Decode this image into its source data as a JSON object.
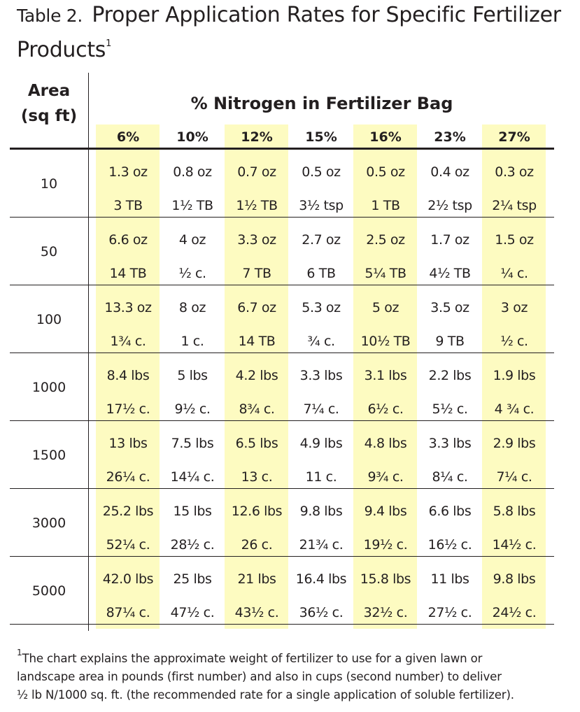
{
  "title": {
    "label": "Table 2.",
    "text": "Proper Application Rates for Specific Fertilizer Products",
    "note_mark": "1"
  },
  "table": {
    "stub_header": [
      "Area",
      "(sq ft)"
    ],
    "span_header": "% Nitrogen in Fertilizer Bag",
    "columns": [
      "6%",
      "10%",
      "12%",
      "15%",
      "16%",
      "23%",
      "27%"
    ],
    "highlight_color": "#fdfbc1",
    "rows": [
      {
        "area": "10",
        "weights": [
          "1.3 oz",
          "0.8 oz",
          "0.7 oz",
          "0.5 oz",
          "0.5 oz",
          "0.4 oz",
          "0.3 oz"
        ],
        "cups": [
          "3 TB",
          "1½ TB",
          "1½ TB",
          "3½ tsp",
          "1 TB",
          "2½ tsp",
          "2¼ tsp"
        ]
      },
      {
        "area": "50",
        "weights": [
          "6.6 oz",
          "4 oz",
          "3.3 oz",
          "2.7 oz",
          "2.5 oz",
          "1.7 oz",
          "1.5 oz"
        ],
        "cups": [
          "14 TB",
          "½ c.",
          "7 TB",
          "6 TB",
          "5¼ TB",
          "4½ TB",
          "¼ c."
        ]
      },
      {
        "area": "100",
        "weights": [
          "13.3 oz",
          "8 oz",
          "6.7 oz",
          "5.3 oz",
          "5 oz",
          "3.5 oz",
          "3 oz"
        ],
        "cups": [
          "1¾ c.",
          "1 c.",
          "14 TB",
          "¾ c.",
          "10½ TB",
          "9 TB",
          "½ c."
        ]
      },
      {
        "area": "1000",
        "weights": [
          "8.4 lbs",
          "5 lbs",
          "4.2 lbs",
          "3.3 lbs",
          "3.1 lbs",
          "2.2 lbs",
          "1.9 lbs"
        ],
        "cups": [
          "17½ c.",
          "9½ c.",
          "8¾ c.",
          "7¼ c.",
          "6½  c.",
          "5½ c.",
          "4 ¾ c."
        ]
      },
      {
        "area": "1500",
        "weights": [
          "13 lbs",
          "7.5 lbs",
          "6.5 lbs",
          "4.9 lbs",
          "4.8 lbs",
          "3.3 lbs",
          "2.9 lbs"
        ],
        "cups": [
          "26¼ c.",
          "14¼ c.",
          "13 c.",
          "11 c.",
          "9¾ c.",
          "8¼ c.",
          "7¼ c."
        ]
      },
      {
        "area": "3000",
        "weights": [
          "25.2 lbs",
          "15 lbs",
          "12.6 lbs",
          "9.8 lbs",
          "9.4 lbs",
          "6.6 lbs",
          "5.8 lbs"
        ],
        "cups": [
          "52¼ c.",
          "28½ c.",
          "26 c.",
          "21¾ c.",
          "19½ c.",
          "16½ c.",
          "14½ c."
        ]
      },
      {
        "area": "5000",
        "weights": [
          "42.0 lbs",
          "25 lbs",
          "21 lbs",
          "16.4 lbs",
          "15.8 lbs",
          "11 lbs",
          "9.8 lbs"
        ],
        "cups": [
          "87¼ c.",
          "47½ c.",
          "43½ c.",
          "36½ c.",
          "32½ c.",
          "27½ c.",
          "24½ c."
        ]
      }
    ]
  },
  "footnote": {
    "mark": "1",
    "lines": [
      "The chart explains the approximate weight of fertilizer to use for a given lawn or",
      "landscape area in pounds (first number) and also in cups (second number) to deliver",
      "½ lb N/1000 sq. ft. (the recommended rate for a single application of soluble fertilizer)."
    ]
  }
}
